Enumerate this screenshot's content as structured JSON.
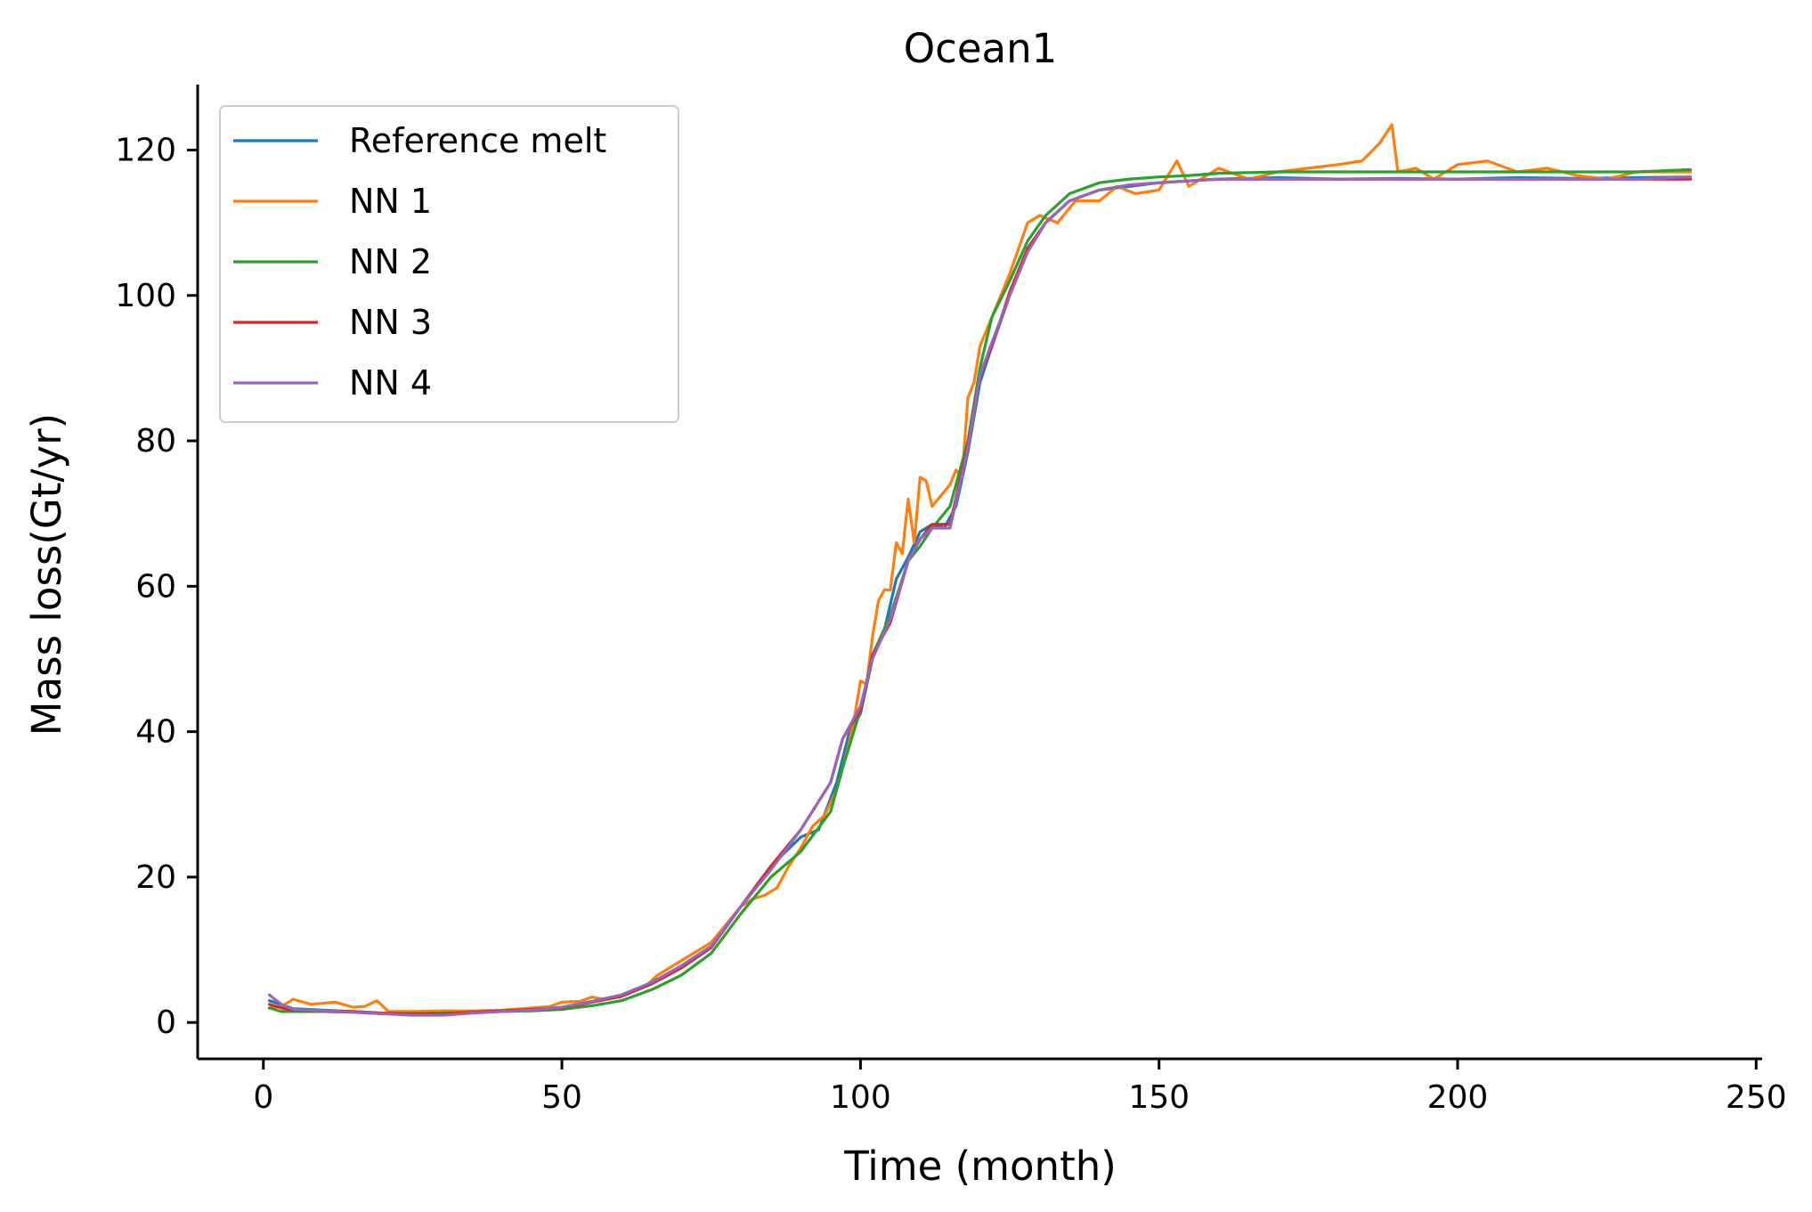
{
  "chart_data": {
    "type": "line",
    "title": "Ocean1",
    "xlabel": "Time (month)",
    "ylabel": "Mass loss(Gt/yr)",
    "xlim": [
      -11,
      251
    ],
    "ylim": [
      -5,
      129
    ],
    "xticks": [
      0,
      50,
      100,
      150,
      200,
      250
    ],
    "yticks": [
      0,
      20,
      40,
      60,
      80,
      100,
      120
    ],
    "grid": false,
    "legend_position": "upper-left",
    "series": [
      {
        "name": "Reference melt",
        "color": "#1f77b4",
        "x": [
          1,
          5,
          10,
          15,
          20,
          25,
          30,
          35,
          40,
          45,
          50,
          55,
          60,
          65,
          70,
          75,
          80,
          85,
          90,
          93,
          96,
          98,
          100,
          102,
          104,
          106,
          108,
          110,
          112,
          114,
          116,
          118,
          120,
          122,
          125,
          128,
          131,
          135,
          140,
          145,
          150,
          160,
          170,
          180,
          190,
          200,
          210,
          220,
          230,
          239
        ],
        "y": [
          3.0,
          1.9,
          1.7,
          1.5,
          1.2,
          1.2,
          1.2,
          1.4,
          1.6,
          1.8,
          2.0,
          2.8,
          3.6,
          5.3,
          7.5,
          10.3,
          16.0,
          21.5,
          25.5,
          26.5,
          33.0,
          39.5,
          42.5,
          50.0,
          54.0,
          61.0,
          64.0,
          67.5,
          68.5,
          68.0,
          71.0,
          78.5,
          88.0,
          93.0,
          100.0,
          106.0,
          110.0,
          113.0,
          114.5,
          115.0,
          115.5,
          116.0,
          116.2,
          116.0,
          116.1,
          116.0,
          116.2,
          116.1,
          116.2,
          116.3
        ]
      },
      {
        "name": "NN 1",
        "color": "#ff7f0e",
        "x": [
          1,
          3,
          5,
          8,
          12,
          15,
          17,
          19,
          21,
          25,
          30,
          35,
          40,
          45,
          48,
          50,
          53,
          55,
          57,
          60,
          62,
          64,
          66,
          70,
          75,
          80,
          82,
          84,
          86,
          88,
          90,
          92,
          94,
          96,
          98,
          99,
          100,
          101,
          102,
          103,
          104,
          105,
          106,
          107,
          108,
          109,
          110,
          111,
          112,
          113,
          114,
          115,
          116,
          117,
          118,
          119,
          120,
          122,
          125,
          128,
          130,
          133,
          136,
          140,
          143,
          146,
          150,
          153,
          155,
          157,
          160,
          165,
          170,
          175,
          180,
          184,
          187,
          189,
          190,
          193,
          196,
          200,
          205,
          210,
          215,
          220,
          225,
          230,
          235,
          239
        ],
        "y": [
          2.0,
          2.2,
          3.2,
          2.5,
          2.8,
          2.1,
          2.2,
          3.0,
          1.5,
          1.5,
          1.6,
          1.6,
          1.7,
          2.0,
          2.2,
          2.8,
          2.9,
          3.5,
          3.2,
          3.8,
          4.5,
          5.0,
          6.5,
          8.5,
          11.0,
          16.0,
          17.0,
          17.5,
          18.5,
          21.5,
          24.0,
          27.0,
          28.5,
          32.0,
          38.0,
          42.0,
          47.0,
          46.5,
          53.0,
          58.0,
          59.5,
          59.5,
          66.0,
          64.5,
          72.0,
          66.0,
          75.0,
          74.5,
          71.0,
          72.0,
          73.0,
          74.0,
          76.0,
          75.0,
          86.0,
          88.0,
          93.0,
          97.0,
          103.0,
          110.0,
          111.0,
          110.0,
          113.0,
          113.0,
          115.0,
          114.0,
          114.5,
          118.5,
          115.0,
          116.0,
          117.5,
          116.0,
          117.0,
          117.5,
          118.0,
          118.5,
          121.0,
          123.5,
          117.0,
          117.5,
          116.0,
          118.0,
          118.5,
          117.0,
          117.5,
          116.5,
          116.0,
          117.0,
          117.0,
          117.0
        ]
      },
      {
        "name": "NN 2",
        "color": "#2ca02c",
        "x": [
          1,
          3,
          5,
          10,
          15,
          20,
          25,
          30,
          35,
          40,
          45,
          50,
          55,
          60,
          65,
          70,
          75,
          80,
          85,
          90,
          95,
          97,
          100,
          102,
          105,
          108,
          110,
          112,
          115,
          118,
          120,
          122,
          125,
          128,
          131,
          135,
          140,
          145,
          150,
          155,
          160,
          170,
          180,
          190,
          200,
          210,
          220,
          230,
          239
        ],
        "y": [
          2.0,
          1.5,
          1.5,
          1.5,
          1.4,
          1.2,
          1.2,
          1.3,
          1.4,
          1.5,
          1.6,
          1.8,
          2.3,
          3.0,
          4.5,
          6.5,
          9.5,
          15.0,
          20.0,
          23.5,
          29.0,
          35.0,
          43.0,
          50.5,
          56.0,
          63.5,
          65.5,
          68.0,
          71.0,
          80.0,
          90.0,
          97.0,
          102.0,
          107.5,
          111.0,
          114.0,
          115.5,
          116.0,
          116.3,
          116.5,
          116.8,
          117.0,
          117.0,
          117.0,
          117.0,
          117.0,
          117.0,
          117.0,
          117.3
        ]
      },
      {
        "name": "NN 3",
        "color": "#d62728",
        "x": [
          1,
          3,
          5,
          10,
          15,
          20,
          25,
          30,
          35,
          40,
          45,
          50,
          55,
          60,
          65,
          70,
          75,
          80,
          85,
          90,
          95,
          97,
          100,
          102,
          105,
          108,
          110,
          112,
          115,
          118,
          120,
          122,
          125,
          128,
          131,
          135,
          140,
          145,
          150,
          160,
          170,
          180,
          190,
          200,
          210,
          220,
          230,
          239
        ],
        "y": [
          2.5,
          2.0,
          1.7,
          1.6,
          1.5,
          1.3,
          1.2,
          1.2,
          1.4,
          1.6,
          1.8,
          2.0,
          2.8,
          3.6,
          5.3,
          7.5,
          10.3,
          16.0,
          21.5,
          26.5,
          33.0,
          39.0,
          43.0,
          50.5,
          55.0,
          63.5,
          66.5,
          68.5,
          68.5,
          79.5,
          89.0,
          93.0,
          100.5,
          106.5,
          110.0,
          113.0,
          114.5,
          115.2,
          115.5,
          116.0,
          116.0,
          116.0,
          116.0,
          116.0,
          116.0,
          116.0,
          116.0,
          116.0
        ]
      },
      {
        "name": "NN 4",
        "color": "#9467bd",
        "x": [
          1,
          3,
          5,
          10,
          15,
          20,
          25,
          30,
          35,
          40,
          45,
          50,
          55,
          60,
          65,
          70,
          75,
          80,
          85,
          90,
          95,
          97,
          100,
          102,
          105,
          108,
          110,
          112,
          115,
          118,
          120,
          122,
          125,
          128,
          131,
          135,
          140,
          145,
          150,
          160,
          170,
          180,
          190,
          200,
          210,
          220,
          230,
          239
        ],
        "y": [
          3.8,
          2.5,
          1.8,
          1.6,
          1.4,
          1.2,
          1.0,
          1.0,
          1.3,
          1.5,
          1.7,
          2.1,
          2.9,
          3.8,
          5.5,
          7.8,
          10.5,
          16.0,
          21.0,
          26.5,
          33.0,
          39.0,
          43.5,
          50.0,
          55.5,
          63.5,
          66.5,
          68.0,
          68.0,
          79.0,
          89.0,
          93.5,
          100.0,
          106.0,
          110.0,
          113.0,
          114.5,
          115.2,
          115.5,
          116.0,
          116.0,
          116.0,
          116.0,
          116.0,
          116.0,
          116.0,
          116.0,
          116.3
        ]
      }
    ]
  }
}
